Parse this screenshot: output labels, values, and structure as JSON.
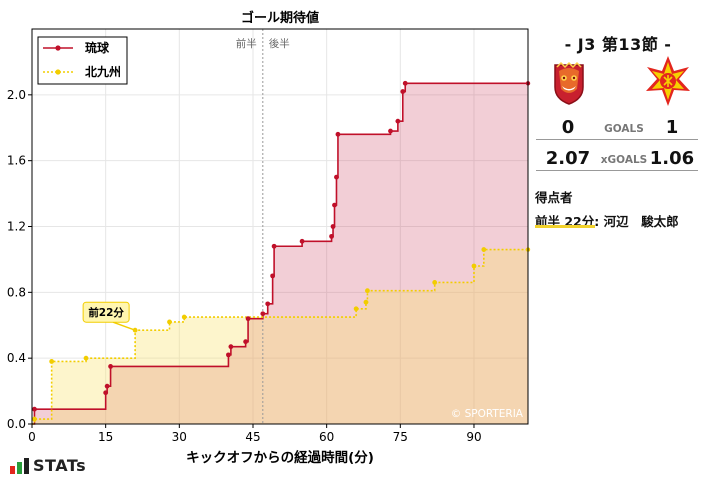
{
  "chart_data": {
    "type": "line",
    "title": "ゴール期待値",
    "xlabel": "キックオフからの経過時間(分)",
    "ylabel": "",
    "xlim": [
      0,
      101
    ],
    "ylim": [
      0,
      2.4
    ],
    "xticks": [
      0,
      15,
      30,
      45,
      60,
      75,
      90
    ],
    "yticks": [
      0.0,
      0.4,
      0.8,
      1.2,
      1.6,
      2.0
    ],
    "ytick_labels": [
      "0.0",
      "0.4",
      "0.8",
      "1.2",
      "1.6",
      "2.0"
    ],
    "halftime_minute": 47,
    "half_labels": [
      "前半",
      "後半"
    ],
    "legend_position": "top-left",
    "grid": true,
    "watermark": "© SPORTERIA",
    "series": [
      {
        "name": "琉球",
        "color": "#c0102a",
        "fill": "rgba(205,60,90,0.25)",
        "style": "solid",
        "points": [
          [
            0,
            0.0
          ],
          [
            0.5,
            0.09
          ],
          [
            15,
            0.19
          ],
          [
            15.3,
            0.23
          ],
          [
            16,
            0.35
          ],
          [
            40,
            0.42
          ],
          [
            40.5,
            0.47
          ],
          [
            43.5,
            0.5
          ],
          [
            44,
            0.64
          ],
          [
            47,
            0.67
          ],
          [
            48,
            0.73
          ],
          [
            49,
            0.9
          ],
          [
            49.3,
            1.08
          ],
          [
            55,
            1.11
          ],
          [
            61,
            1.14
          ],
          [
            61.3,
            1.2
          ],
          [
            61.6,
            1.33
          ],
          [
            62,
            1.5
          ],
          [
            62.3,
            1.76
          ],
          [
            73,
            1.78
          ],
          [
            74.5,
            1.84
          ],
          [
            75.5,
            2.02
          ],
          [
            76,
            2.07
          ],
          [
            101,
            2.07
          ]
        ]
      },
      {
        "name": "北九州",
        "color": "#f2cd00",
        "fill": "rgba(248,226,110,0.35)",
        "style": "dotted",
        "points": [
          [
            0,
            0.0
          ],
          [
            0.5,
            0.03
          ],
          [
            4,
            0.38
          ],
          [
            11,
            0.4
          ],
          [
            21,
            0.57
          ],
          [
            28,
            0.62
          ],
          [
            31,
            0.65
          ],
          [
            66,
            0.7
          ],
          [
            68,
            0.74
          ],
          [
            68.3,
            0.81
          ],
          [
            82,
            0.86
          ],
          [
            90,
            0.96
          ],
          [
            92,
            1.06
          ],
          [
            101,
            1.06
          ]
        ]
      }
    ],
    "goal_annotation": {
      "label": "前22分",
      "team": "北九州",
      "x": 21,
      "y": 0.57
    }
  },
  "panel": {
    "match_title": "-  J3 第13節  -",
    "home_score": "0",
    "goals_label": "GOALS",
    "away_score": "1",
    "home_xg": "2.07",
    "xgoals_label": "xGOALS",
    "away_xg": "1.06",
    "home_crest": "ryukyu-crest",
    "away_crest": "kitakyushu-crest",
    "scorers_title": "得点者",
    "scorers": [
      {
        "time": "前半 22分:",
        "name": "河辺　駿太郎"
      }
    ]
  },
  "branding": {
    "logo_text": "STATs"
  }
}
